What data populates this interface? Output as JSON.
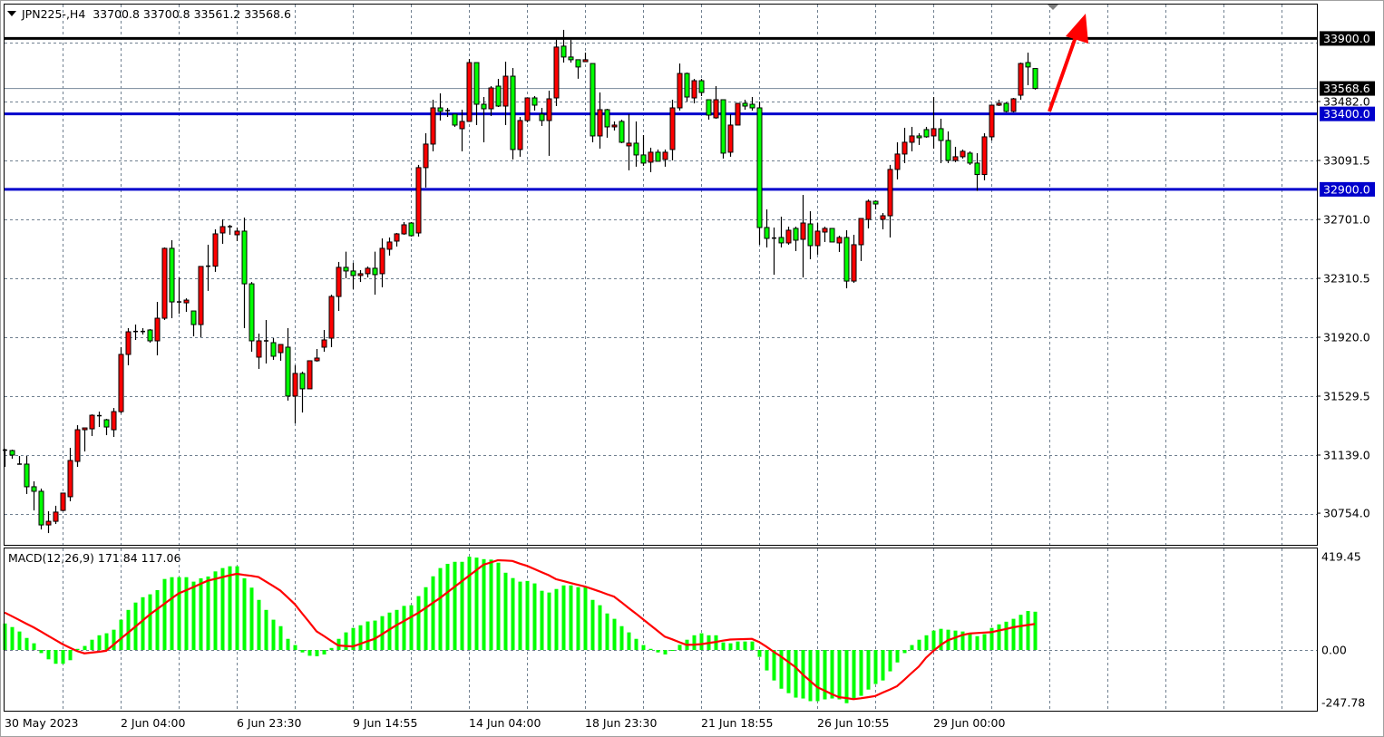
{
  "header": {
    "symbol": "JPN225-,H4",
    "ohlc_text": "33700.8 33700.8 33561.2 33568.6"
  },
  "colors": {
    "bull_candle": "#ff0000",
    "bear_candle": "#00ff00",
    "histogram": "#00ff00",
    "signal": "#ff0000",
    "support_resistance": "#0000cc",
    "target_line": "#000000",
    "arrow": "#ff0000"
  },
  "chart_data": [
    {
      "type": "candlestick",
      "title": "JPN225-,H4",
      "timeframe": "H4",
      "x_tick_labels": [
        "30 May 2023",
        "2 Jun 04:00",
        "6 Jun 23:30",
        "9 Jun 14:55",
        "14 Jun 04:00",
        "18 Jun 23:30",
        "21 Jun 18:55",
        "26 Jun 10:55",
        "29 Jun 00:00"
      ],
      "y_tick_labels": [
        "33482.0",
        "33091.5",
        "32701.0",
        "32310.5",
        "31920.0",
        "31529.5",
        "31139.0",
        "30754.0"
      ],
      "grid": true,
      "candle_fields": [
        "open",
        "high",
        "low",
        "close"
      ],
      "candles": [
        [
          31172,
          31181,
          31061,
          31169
        ],
        [
          31169,
          31175,
          31115,
          31139
        ],
        [
          31079,
          31133,
          31079,
          31079
        ],
        [
          31079,
          31133,
          30881,
          30929
        ],
        [
          30929,
          30965,
          30772,
          30899
        ],
        [
          30899,
          30917,
          30646,
          30676
        ],
        [
          30676,
          30767,
          30622,
          30700
        ],
        [
          30700,
          30803,
          30682,
          30761
        ],
        [
          30772,
          30887,
          30767,
          30887
        ],
        [
          30863,
          31187,
          30833,
          31103
        ],
        [
          31097,
          31337,
          31061,
          31307
        ],
        [
          31307,
          31319,
          31163,
          31319
        ],
        [
          31313,
          31409,
          31265,
          31403
        ],
        [
          31400,
          31427,
          31325,
          31397
        ],
        [
          31373,
          31379,
          31271,
          31325
        ],
        [
          31307,
          31451,
          31259,
          31427
        ],
        [
          31427,
          31854,
          31415,
          31806
        ],
        [
          31806,
          31980,
          31734,
          31956
        ],
        [
          31956,
          32004,
          31902,
          31958
        ],
        [
          31958,
          31980,
          31938,
          31956
        ],
        [
          31968,
          31974,
          31884,
          31896
        ],
        [
          31896,
          32154,
          31800,
          32046
        ],
        [
          32046,
          32515,
          32034,
          32509
        ],
        [
          32509,
          32563,
          32046,
          32154
        ],
        [
          32154,
          32316,
          32076,
          32148
        ],
        [
          32148,
          32178,
          32088,
          32166
        ],
        [
          32094,
          32094,
          31926,
          32004
        ],
        [
          32004,
          32389,
          31920,
          32389
        ],
        [
          32389,
          32533,
          32227,
          32391
        ],
        [
          32391,
          32635,
          32353,
          32605
        ],
        [
          32611,
          32701,
          32539,
          32653
        ],
        [
          32653,
          32665,
          32599,
          32647
        ],
        [
          32599,
          32647,
          32557,
          32623
        ],
        [
          32623,
          32713,
          31980,
          32274
        ],
        [
          32274,
          32286,
          31824,
          31896
        ],
        [
          31788,
          31944,
          31710,
          31896
        ],
        [
          31896,
          32034,
          31746,
          31890
        ],
        [
          31884,
          31914,
          31770,
          31794
        ],
        [
          31818,
          31872,
          31764,
          31872
        ],
        [
          31854,
          31980,
          31500,
          31530
        ],
        [
          31530,
          31734,
          31349,
          31680
        ],
        [
          31680,
          31692,
          31421,
          31578
        ],
        [
          31578,
          31764,
          31578,
          31764
        ],
        [
          31764,
          31842,
          31758,
          31782
        ],
        [
          31854,
          31968,
          31824,
          31902
        ],
        [
          31914,
          32202,
          31854,
          32190
        ],
        [
          32190,
          32419,
          32094,
          32383
        ],
        [
          32383,
          32487,
          32310,
          32359
        ],
        [
          32359,
          32413,
          32239,
          32329
        ],
        [
          32329,
          32365,
          32286,
          32341
        ],
        [
          32341,
          32389,
          32316,
          32377
        ],
        [
          32377,
          32487,
          32202,
          32335
        ],
        [
          32341,
          32575,
          32251,
          32509
        ],
        [
          32503,
          32581,
          32461,
          32551
        ],
        [
          32557,
          32611,
          32521,
          32605
        ],
        [
          32605,
          32683,
          32599,
          32665
        ],
        [
          32677,
          32683,
          32587,
          32593
        ],
        [
          32611,
          33062,
          32587,
          33044
        ],
        [
          33044,
          33272,
          32912,
          33200
        ],
        [
          33200,
          33494,
          33152,
          33440
        ],
        [
          33440,
          33536,
          33356,
          33416
        ],
        [
          33416,
          33440,
          33380,
          33422
        ],
        [
          33398,
          33398,
          33314,
          33326
        ],
        [
          33302,
          33428,
          33152,
          33350
        ],
        [
          33350,
          33764,
          33350,
          33740
        ],
        [
          33740,
          33740,
          33326,
          33464
        ],
        [
          33464,
          33512,
          33212,
          33434
        ],
        [
          33434,
          33584,
          33386,
          33572
        ],
        [
          33584,
          33632,
          33446,
          33452
        ],
        [
          33452,
          33746,
          33326,
          33650
        ],
        [
          33650,
          33704,
          33098,
          33164
        ],
        [
          33164,
          33380,
          33116,
          33356
        ],
        [
          33356,
          33506,
          33344,
          33506
        ],
        [
          33506,
          33518,
          33422,
          33458
        ],
        [
          33398,
          33440,
          33320,
          33356
        ],
        [
          33356,
          33554,
          33122,
          33500
        ],
        [
          33506,
          33891,
          33452,
          33843
        ],
        [
          33849,
          33957,
          33740,
          33777
        ],
        [
          33777,
          33891,
          33740,
          33759
        ],
        [
          33759,
          33759,
          33633,
          33711
        ],
        [
          33746,
          33806,
          33746,
          33759
        ],
        [
          33734,
          33734,
          33212,
          33254
        ],
        [
          33254,
          33542,
          33170,
          33428
        ],
        [
          33428,
          33434,
          33242,
          33314
        ],
        [
          33314,
          33350,
          33290,
          33326
        ],
        [
          33350,
          33362,
          33206,
          33212
        ],
        [
          33188,
          33398,
          33026,
          33206
        ],
        [
          33206,
          33350,
          33050,
          33128
        ],
        [
          33128,
          33260,
          33056,
          33074
        ],
        [
          33080,
          33176,
          33014,
          33146
        ],
        [
          33146,
          33164,
          33086,
          33086
        ],
        [
          33098,
          33164,
          33050,
          33146
        ],
        [
          33164,
          33494,
          33092,
          33440
        ],
        [
          33440,
          33734,
          33422,
          33668
        ],
        [
          33668,
          33674,
          33482,
          33512
        ],
        [
          33506,
          33632,
          33470,
          33620
        ],
        [
          33620,
          33632,
          33518,
          33542
        ],
        [
          33494,
          33494,
          33362,
          33392
        ],
        [
          33374,
          33584,
          33368,
          33494
        ],
        [
          33494,
          33494,
          33104,
          33140
        ],
        [
          33146,
          33398,
          33116,
          33326
        ],
        [
          33326,
          33470,
          33326,
          33470
        ],
        [
          33470,
          33494,
          33428,
          33452
        ],
        [
          33464,
          33512,
          33422,
          33440
        ],
        [
          33440,
          33482,
          32533,
          32647
        ],
        [
          32647,
          32767,
          32515,
          32575
        ],
        [
          32575,
          32647,
          32334,
          32577
        ],
        [
          32581,
          32719,
          32515,
          32545
        ],
        [
          32545,
          32653,
          32533,
          32629
        ],
        [
          32641,
          32653,
          32491,
          32563
        ],
        [
          32569,
          32863,
          32316,
          32677
        ],
        [
          32671,
          32755,
          32437,
          32527
        ],
        [
          32527,
          32677,
          32467,
          32623
        ],
        [
          32617,
          32653,
          32551,
          32641
        ],
        [
          32641,
          32641,
          32551,
          32551
        ],
        [
          32545,
          32593,
          32485,
          32581
        ],
        [
          32581,
          32629,
          32244,
          32292
        ],
        [
          32292,
          32599,
          32280,
          32533
        ],
        [
          32533,
          32707,
          32425,
          32707
        ],
        [
          32701,
          32833,
          32641,
          32821
        ],
        [
          32821,
          32827,
          32767,
          32803
        ],
        [
          32701,
          32743,
          32635,
          32725
        ],
        [
          32725,
          33062,
          32581,
          33032
        ],
        [
          33032,
          33212,
          32966,
          33134
        ],
        [
          33134,
          33308,
          33074,
          33212
        ],
        [
          33212,
          33314,
          33152,
          33254
        ],
        [
          33254,
          33272,
          33194,
          33242
        ],
        [
          33296,
          33314,
          33242,
          33248
        ],
        [
          33254,
          33512,
          33170,
          33302
        ],
        [
          33302,
          33368,
          33074,
          33224
        ],
        [
          33224,
          33284,
          33074,
          33092
        ],
        [
          33092,
          33182,
          33080,
          33116
        ],
        [
          33116,
          33164,
          33104,
          33152
        ],
        [
          33140,
          33152,
          33062,
          33074
        ],
        [
          33074,
          33140,
          32890,
          32998
        ],
        [
          32998,
          33272,
          32960,
          33248
        ],
        [
          33248,
          33458,
          33224,
          33458
        ],
        [
          33458,
          33494,
          33452,
          33470
        ],
        [
          33470,
          33476,
          33410,
          33416
        ],
        [
          33416,
          33506,
          33410,
          33500
        ],
        [
          33524,
          33740,
          33494,
          33734
        ],
        [
          33740,
          33806,
          33590,
          33711
        ],
        [
          33700.8,
          33700.8,
          33561.2,
          33568.6
        ]
      ],
      "current_price": {
        "value": 33568.6,
        "label": "33568.6"
      },
      "horizontal_lines": [
        {
          "price": 33900.0,
          "label": "33900.0",
          "color": "#000000"
        },
        {
          "price": 33400.0,
          "label": "33400.0",
          "color": "#0000cc"
        },
        {
          "price": 32900.0,
          "label": "32900.0",
          "color": "#0000cc"
        }
      ],
      "annotation": {
        "type": "arrow",
        "direction": "up",
        "color": "#ff0000"
      }
    },
    {
      "type": "bar+line",
      "title": "MACD(12,26,9)",
      "main_value": "171.84",
      "signal_value": "117.06",
      "y_tick_labels": [
        "419.45",
        "0.00",
        "-247.78"
      ],
      "ylim": [
        -247.78,
        419.45
      ],
      "histogram": [
        119,
        103,
        83,
        54,
        30,
        -14,
        -42,
        -62,
        -62,
        -46,
        5,
        18,
        46,
        66,
        75,
        91,
        136,
        180,
        213,
        237,
        250,
        269,
        319,
        327,
        327,
        327,
        307,
        322,
        330,
        353,
        368,
        376,
        376,
        322,
        280,
        225,
        180,
        136,
        107,
        50,
        22,
        -11,
        -26,
        -28,
        -20,
        9,
        50,
        79,
        99,
        111,
        128,
        132,
        152,
        168,
        180,
        198,
        201,
        242,
        282,
        331,
        368,
        387,
        396,
        396,
        419,
        415,
        408,
        406,
        392,
        347,
        323,
        307,
        310,
        299,
        266,
        258,
        274,
        290,
        290,
        282,
        282,
        225,
        201,
        164,
        140,
        107,
        79,
        50,
        22,
        5,
        -11,
        -20,
        -4,
        23,
        46,
        66,
        75,
        66,
        66,
        34,
        30,
        38,
        38,
        38,
        -31,
        -92,
        -137,
        -174,
        -194,
        -214,
        -218,
        -230,
        -230,
        -222,
        -218,
        -222,
        -239,
        -218,
        -206,
        -178,
        -153,
        -137,
        -96,
        -56,
        -14,
        22,
        46,
        66,
        87,
        95,
        91,
        87,
        83,
        75,
        62,
        71,
        99,
        115,
        127,
        140,
        158,
        175,
        171.84
      ],
      "signal": [
        168,
        152,
        135,
        118,
        102,
        83,
        64,
        45,
        26,
        10,
        -5,
        -15,
        -12,
        -8,
        -4,
        23,
        50,
        77,
        104,
        131,
        159,
        183,
        207,
        231,
        254,
        268,
        282,
        297,
        311,
        319,
        327,
        335,
        342,
        337,
        333,
        328,
        308,
        288,
        267,
        237,
        206,
        165,
        125,
        84,
        63,
        41,
        20,
        18,
        16,
        27,
        39,
        50,
        70,
        91,
        111,
        129,
        148,
        166,
        188,
        211,
        233,
        258,
        283,
        308,
        333,
        358,
        383,
        393,
        403,
        402,
        400,
        388,
        378,
        364,
        350,
        336,
        318,
        310,
        301,
        293,
        285,
        274,
        263,
        251,
        240,
        215,
        189,
        164,
        138,
        112,
        86,
        60,
        48,
        35,
        23,
        24,
        26,
        31,
        36,
        42,
        47,
        48,
        49,
        50,
        36,
        15,
        -8,
        -29,
        -53,
        -77,
        -110,
        -138,
        -167,
        -182,
        -198,
        -212,
        -216,
        -221,
        -217,
        -212,
        -207,
        -192,
        -178,
        -163,
        -134,
        -104,
        -75,
        -35,
        -5,
        22,
        43,
        55,
        67,
        74,
        76,
        78,
        80,
        87,
        94,
        102,
        107,
        112,
        117.06
      ]
    }
  ]
}
